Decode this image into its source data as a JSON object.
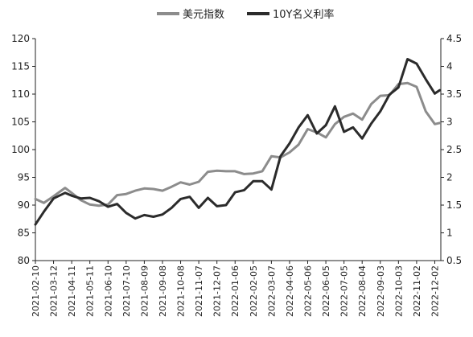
{
  "chart_data": {
    "type": "line",
    "title": "",
    "legend_position": "top-center",
    "grid": false,
    "x_tick_labels": [
      "2021-02-10",
      "2021-03-12",
      "2021-04-11",
      "2021-05-11",
      "2021-06-10",
      "2021-07-10",
      "2021-08-09",
      "2021-09-08",
      "2021-10-08",
      "2021-11-07",
      "2021-12-07",
      "2022-01-06",
      "2022-02-05",
      "2022-03-07",
      "2022-04-06",
      "2022-05-06",
      "2022-06-05",
      "2022-07-05",
      "2022-08-04",
      "2022-09-03",
      "2022-10-03",
      "2022-11-02",
      "2022-12-02"
    ],
    "y_left": {
      "min": 80,
      "max": 120,
      "ticks": [
        80,
        85,
        90,
        95,
        100,
        105,
        110,
        115,
        120
      ]
    },
    "y_right": {
      "min": 0.5,
      "max": 4.5,
      "ticks": [
        "0.5",
        "1",
        "1.5",
        "2",
        "2.5",
        "3",
        "3.5",
        "4",
        "4.5"
      ]
    },
    "series": [
      {
        "name": "美元指数",
        "axis": "left",
        "color": "#8c8c8c",
        "points": [
          [
            "2021-02-10",
            91.1
          ],
          [
            "2021-02-24",
            90.4
          ],
          [
            "2021-03-12",
            91.6
          ],
          [
            "2021-03-31",
            93.1
          ],
          [
            "2021-04-11",
            92.2
          ],
          [
            "2021-04-26",
            90.9
          ],
          [
            "2021-05-11",
            90.1
          ],
          [
            "2021-05-26",
            89.9
          ],
          [
            "2021-06-10",
            90.1
          ],
          [
            "2021-06-25",
            91.8
          ],
          [
            "2021-07-10",
            92.0
          ],
          [
            "2021-07-25",
            92.6
          ],
          [
            "2021-08-09",
            93.0
          ],
          [
            "2021-08-24",
            92.9
          ],
          [
            "2021-09-08",
            92.6
          ],
          [
            "2021-09-23",
            93.3
          ],
          [
            "2021-10-08",
            94.1
          ],
          [
            "2021-10-23",
            93.7
          ],
          [
            "2021-11-07",
            94.2
          ],
          [
            "2021-11-22",
            96.0
          ],
          [
            "2021-12-07",
            96.2
          ],
          [
            "2021-12-22",
            96.1
          ],
          [
            "2022-01-06",
            96.1
          ],
          [
            "2022-01-21",
            95.6
          ],
          [
            "2022-02-05",
            95.7
          ],
          [
            "2022-02-20",
            96.1
          ],
          [
            "2022-03-07",
            98.8
          ],
          [
            "2022-03-22",
            98.6
          ],
          [
            "2022-04-06",
            99.5
          ],
          [
            "2022-04-21",
            100.9
          ],
          [
            "2022-05-06",
            103.7
          ],
          [
            "2022-05-21",
            103.1
          ],
          [
            "2022-06-05",
            102.2
          ],
          [
            "2022-06-20",
            104.6
          ],
          [
            "2022-07-05",
            105.9
          ],
          [
            "2022-07-20",
            106.5
          ],
          [
            "2022-08-04",
            105.4
          ],
          [
            "2022-08-19",
            108.2
          ],
          [
            "2022-09-03",
            109.7
          ],
          [
            "2022-09-18",
            109.8
          ],
          [
            "2022-10-03",
            111.8
          ],
          [
            "2022-10-18",
            112.0
          ],
          [
            "2022-11-02",
            111.3
          ],
          [
            "2022-11-17",
            106.9
          ],
          [
            "2022-12-02",
            104.6
          ],
          [
            "2022-12-10",
            104.8
          ]
        ]
      },
      {
        "name": "10Y名义利率",
        "axis": "right",
        "color": "#2b2b2b",
        "points": [
          [
            "2021-02-10",
            1.15
          ],
          [
            "2021-02-24",
            1.38
          ],
          [
            "2021-03-12",
            1.62
          ],
          [
            "2021-03-31",
            1.72
          ],
          [
            "2021-04-11",
            1.67
          ],
          [
            "2021-04-26",
            1.62
          ],
          [
            "2021-05-11",
            1.63
          ],
          [
            "2021-05-26",
            1.57
          ],
          [
            "2021-06-10",
            1.47
          ],
          [
            "2021-06-25",
            1.52
          ],
          [
            "2021-07-10",
            1.36
          ],
          [
            "2021-07-25",
            1.26
          ],
          [
            "2021-08-09",
            1.32
          ],
          [
            "2021-08-24",
            1.29
          ],
          [
            "2021-09-08",
            1.33
          ],
          [
            "2021-09-23",
            1.45
          ],
          [
            "2021-10-08",
            1.61
          ],
          [
            "2021-10-23",
            1.65
          ],
          [
            "2021-11-07",
            1.45
          ],
          [
            "2021-11-22",
            1.63
          ],
          [
            "2021-12-07",
            1.48
          ],
          [
            "2021-12-22",
            1.5
          ],
          [
            "2022-01-06",
            1.73
          ],
          [
            "2022-01-21",
            1.77
          ],
          [
            "2022-02-05",
            1.93
          ],
          [
            "2022-02-20",
            1.93
          ],
          [
            "2022-03-07",
            1.78
          ],
          [
            "2022-03-22",
            2.38
          ],
          [
            "2022-04-06",
            2.61
          ],
          [
            "2022-04-21",
            2.9
          ],
          [
            "2022-05-06",
            3.12
          ],
          [
            "2022-05-21",
            2.79
          ],
          [
            "2022-06-05",
            2.94
          ],
          [
            "2022-06-20",
            3.28
          ],
          [
            "2022-07-05",
            2.82
          ],
          [
            "2022-07-20",
            2.9
          ],
          [
            "2022-08-04",
            2.7
          ],
          [
            "2022-08-19",
            2.97
          ],
          [
            "2022-09-03",
            3.19
          ],
          [
            "2022-09-18",
            3.49
          ],
          [
            "2022-10-03",
            3.62
          ],
          [
            "2022-10-18",
            4.13
          ],
          [
            "2022-11-02",
            4.05
          ],
          [
            "2022-11-17",
            3.77
          ],
          [
            "2022-12-02",
            3.51
          ],
          [
            "2022-12-10",
            3.57
          ]
        ]
      }
    ]
  }
}
